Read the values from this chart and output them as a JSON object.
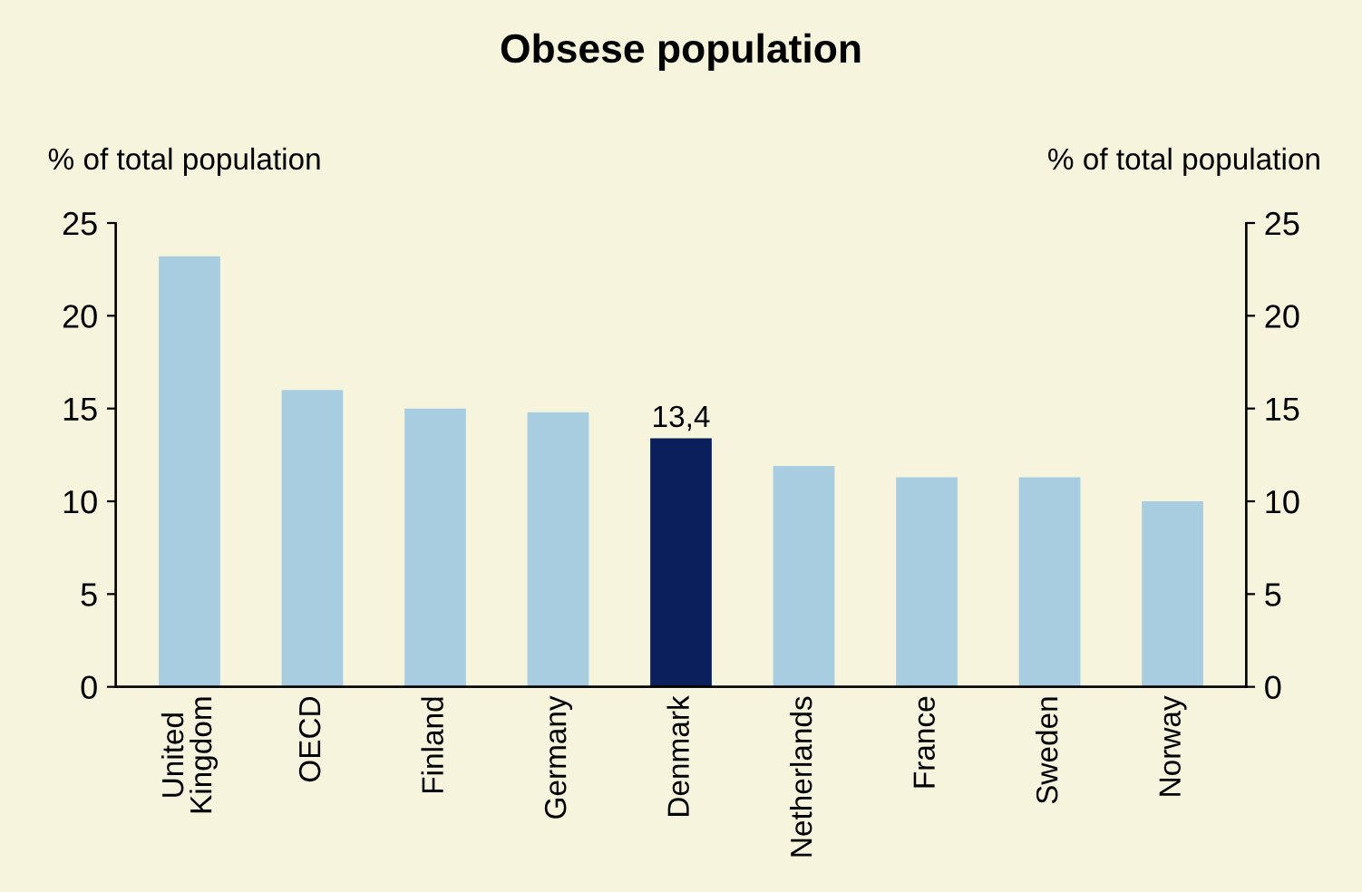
{
  "chart_data": {
    "type": "bar",
    "title": "Obsese population",
    "ylabel": "% of total population",
    "y2label": "% of total population",
    "categories": [
      "United\nKingdom",
      "OECD",
      "Finland",
      "Germany",
      "Denmark",
      "Netherlands",
      "France",
      "Sweden",
      "Norway"
    ],
    "values": [
      23.2,
      16.0,
      15.0,
      14.8,
      13.4,
      11.9,
      11.3,
      11.3,
      10.0
    ],
    "colors": [
      "#a9cde0",
      "#a9cde0",
      "#a9cde0",
      "#a9cde0",
      "#0a1f5c",
      "#a9cde0",
      "#a9cde0",
      "#a9cde0",
      "#a9cde0"
    ],
    "value_labels": [
      null,
      null,
      null,
      null,
      "13,4",
      null,
      null,
      null,
      null
    ],
    "ylim": [
      0,
      25
    ],
    "yticks": [
      0,
      5,
      10,
      15,
      20,
      25
    ],
    "y2lim": [
      0,
      25
    ],
    "y2ticks": [
      0,
      5,
      10,
      15,
      20,
      25
    ],
    "grid": false,
    "legend": false
  }
}
